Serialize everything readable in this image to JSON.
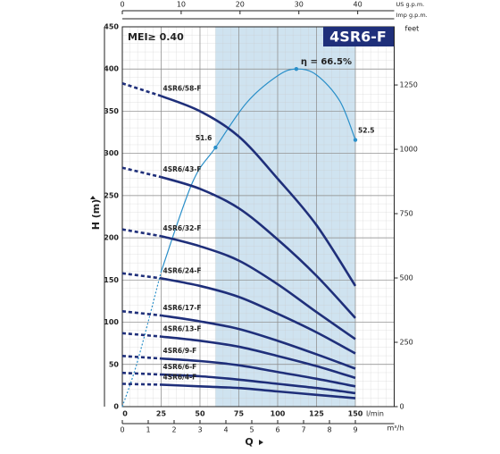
{
  "chart_data": {
    "type": "line",
    "title": "4SR6-F",
    "subtitle": "MEI≥ 0.40",
    "y_label": "H (m)",
    "x_label": "Q",
    "x": [
      0,
      25,
      50,
      75,
      100,
      125,
      150
    ],
    "xlim": [
      0,
      175
    ],
    "xticks": [
      0,
      25,
      50,
      75,
      100,
      125,
      150
    ],
    "x_unit": "l/min",
    "ylim": [
      0,
      450
    ],
    "yticks": [
      0,
      50,
      100,
      150,
      200,
      250,
      300,
      350,
      400,
      450
    ],
    "y2lim": [
      0,
      1476
    ],
    "y2ticks": [
      0,
      250,
      500,
      750,
      1000,
      1250
    ],
    "y2_unit": "feet",
    "x_top_us": {
      "unit": "US g.p.m.",
      "lim": [
        0,
        46.2
      ],
      "ticks": [
        0,
        10,
        20,
        30,
        40
      ]
    },
    "x_top_imp": {
      "unit": "Imp g.p.m."
    },
    "x_bottom_m3h": {
      "unit": "m³/h",
      "lim": [
        0,
        10.5
      ],
      "ticks": [
        0,
        1,
        2,
        3,
        4,
        5,
        6,
        7,
        8,
        9
      ]
    },
    "shaded_range": [
      60,
      150
    ],
    "color": "#1f2f7a",
    "series": [
      {
        "name": "4SR6/58-F",
        "values": [
          383,
          368,
          350,
          320,
          270,
          215,
          143
        ]
      },
      {
        "name": "4SR6/43-F",
        "values": [
          283,
          272,
          258,
          235,
          198,
          155,
          105
        ]
      },
      {
        "name": "4SR6/32-F",
        "values": [
          210,
          202,
          190,
          173,
          145,
          112,
          80
        ]
      },
      {
        "name": "4SR6/24-F",
        "values": [
          158,
          152,
          143,
          130,
          110,
          88,
          63
        ]
      },
      {
        "name": "4SR6/17-F",
        "values": [
          113,
          108,
          101,
          92,
          78,
          62,
          45
        ]
      },
      {
        "name": "4SR6/13-F",
        "values": [
          87,
          83,
          78,
          71,
          60,
          48,
          34
        ]
      },
      {
        "name": "4SR6/9-F",
        "values": [
          60,
          57,
          54,
          49,
          41,
          33,
          24
        ]
      },
      {
        "name": "4SR6/6-F",
        "values": [
          40,
          38,
          36,
          32,
          27,
          22,
          16
        ]
      },
      {
        "name": "4SR6/4-F",
        "values": [
          27,
          26,
          24,
          22,
          18,
          14,
          10
        ]
      }
    ],
    "efficiency": {
      "color": "#2a8fc9",
      "x": [
        0,
        10,
        25,
        45,
        60,
        80,
        100,
        112,
        125,
        140,
        150
      ],
      "values": [
        0,
        55,
        160,
        265,
        307,
        360,
        392,
        400,
        393,
        362,
        316
      ],
      "points": [
        {
          "x": 60,
          "value": 307,
          "label": "51.6"
        },
        {
          "x": 112,
          "value": 400,
          "label": "η = 66.5%"
        },
        {
          "x": 150,
          "value": 316,
          "label": "52.5"
        }
      ]
    }
  }
}
